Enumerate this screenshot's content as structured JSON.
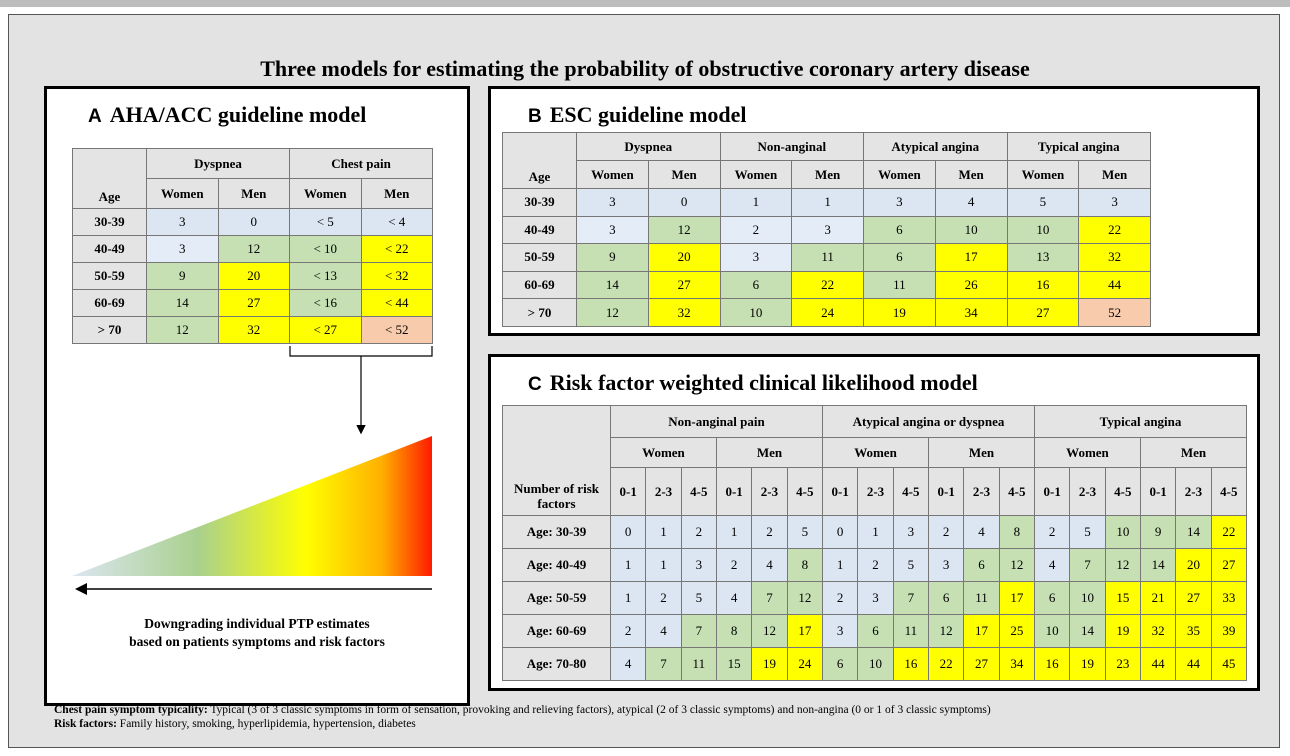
{
  "title": "Three models for estimating the probability of obstructive coronary artery disease",
  "panels": {
    "a": {
      "label": "A",
      "title": "AHA/ACC guideline model",
      "table": {
        "corner": "Age",
        "groups": [
          "Dyspnea",
          "Chest pain"
        ],
        "subgroups": [
          "Women",
          "Men",
          "Women",
          "Men"
        ],
        "rows": [
          {
            "label": "30-39",
            "values": [
              3,
              0,
              "<  5",
              "<  4"
            ],
            "colors": [
              "#dce6f2",
              "#dce6f2",
              "#dce6f2",
              "#dce6f2"
            ]
          },
          {
            "label": "40-49",
            "values": [
              3,
              12,
              "< 10",
              "< 22"
            ],
            "colors": [
              "#e4edf7",
              "#c6e0b4",
              "#c6e0b4",
              "#ffff00"
            ]
          },
          {
            "label": "50-59",
            "values": [
              9,
              20,
              "< 13",
              "< 32"
            ],
            "colors": [
              "#c6e0b4",
              "#ffff00",
              "#c6e0b4",
              "#ffff00"
            ]
          },
          {
            "label": "60-69",
            "values": [
              14,
              27,
              "< 16",
              "< 44"
            ],
            "colors": [
              "#c6e0b4",
              "#ffff00",
              "#c6e0b4",
              "#ffff00"
            ]
          },
          {
            "label": "> 70",
            "values": [
              12,
              32,
              "< 27",
              "< 52"
            ],
            "colors": [
              "#c6e0b4",
              "#ffff00",
              "#ffff00",
              "#f8cbad"
            ]
          }
        ]
      },
      "caption": [
        "Downgrading individual PTP estimates",
        "based on patients symptoms and risk factors"
      ]
    },
    "b": {
      "label": "B",
      "title": "ESC guideline model",
      "table": {
        "corner": "Age",
        "groups": [
          "Dyspnea",
          "Non-anginal",
          "Atypical angina",
          "Typical angina"
        ],
        "subgroups": [
          "Women",
          "Men",
          "Women",
          "Men",
          "Women",
          "Men",
          "Women",
          "Men"
        ],
        "rows": [
          {
            "label": "30-39",
            "values": [
              3,
              0,
              1,
              1,
              3,
              4,
              5,
              3
            ],
            "colors": [
              "#dce6f2",
              "#dce6f2",
              "#dce6f2",
              "#dce6f2",
              "#dce6f2",
              "#dce6f2",
              "#dce6f2",
              "#dce6f2"
            ]
          },
          {
            "label": "40-49",
            "values": [
              3,
              12,
              2,
              3,
              6,
              10,
              10,
              22
            ],
            "colors": [
              "#e4edf7",
              "#c6e0b4",
              "#e4edf7",
              "#e4edf7",
              "#c6e0b4",
              "#c6e0b4",
              "#c6e0b4",
              "#ffff00"
            ]
          },
          {
            "label": "50-59",
            "values": [
              9,
              20,
              3,
              11,
              6,
              17,
              13,
              32
            ],
            "colors": [
              "#c6e0b4",
              "#ffff00",
              "#e4edf7",
              "#c6e0b4",
              "#c6e0b4",
              "#ffff00",
              "#c6e0b4",
              "#ffff00"
            ]
          },
          {
            "label": "60-69",
            "values": [
              14,
              27,
              6,
              22,
              11,
              26,
              16,
              44
            ],
            "colors": [
              "#c6e0b4",
              "#ffff00",
              "#c6e0b4",
              "#ffff00",
              "#c6e0b4",
              "#ffff00",
              "#ffff00",
              "#ffff00"
            ]
          },
          {
            "label": "> 70",
            "values": [
              12,
              32,
              10,
              24,
              19,
              34,
              27,
              52
            ],
            "colors": [
              "#c6e0b4",
              "#ffff00",
              "#c6e0b4",
              "#ffff00",
              "#ffff00",
              "#ffff00",
              "#ffff00",
              "#f8cbad"
            ]
          }
        ]
      }
    },
    "c": {
      "label": "C",
      "title": "Risk factor weighted clinical likelihood model",
      "table": {
        "corner": "Number of risk factors",
        "groups": [
          "Non-anginal pain",
          "Atypical angina or dyspnea",
          "Typical angina"
        ],
        "subgroups": [
          "Women",
          "Men",
          "Women",
          "Men",
          "Women",
          "Men"
        ],
        "subsubgroups": [
          "0-1",
          "2-3",
          "4-5",
          "0-1",
          "2-3",
          "4-5",
          "0-1",
          "2-3",
          "4-5",
          "0-1",
          "2-3",
          "4-5",
          "0-1",
          "2-3",
          "4-5",
          "0-1",
          "2-3",
          "4-5"
        ],
        "rows": [
          {
            "label": "Age: 30-39",
            "values": [
              0,
              1,
              2,
              1,
              2,
              5,
              0,
              1,
              3,
              2,
              4,
              8,
              2,
              5,
              10,
              9,
              14,
              22
            ],
            "colors": [
              "#dce6f2",
              "#dce6f2",
              "#dce6f2",
              "#dce6f2",
              "#dce6f2",
              "#dce6f2",
              "#dce6f2",
              "#dce6f2",
              "#dce6f2",
              "#dce6f2",
              "#dce6f2",
              "#c6e0b4",
              "#dce6f2",
              "#dce6f2",
              "#c6e0b4",
              "#c6e0b4",
              "#c6e0b4",
              "#ffff00"
            ]
          },
          {
            "label": "Age: 40-49",
            "values": [
              1,
              1,
              3,
              2,
              4,
              8,
              1,
              2,
              5,
              3,
              6,
              12,
              4,
              7,
              12,
              14,
              20,
              27
            ],
            "colors": [
              "#dce6f2",
              "#dce6f2",
              "#dce6f2",
              "#dce6f2",
              "#dce6f2",
              "#c6e0b4",
              "#dce6f2",
              "#dce6f2",
              "#dce6f2",
              "#dce6f2",
              "#c6e0b4",
              "#c6e0b4",
              "#dce6f2",
              "#c6e0b4",
              "#c6e0b4",
              "#c6e0b4",
              "#ffff00",
              "#ffff00"
            ]
          },
          {
            "label": "Age: 50-59",
            "values": [
              1,
              2,
              5,
              4,
              7,
              12,
              2,
              3,
              7,
              6,
              11,
              17,
              6,
              10,
              15,
              21,
              27,
              33
            ],
            "colors": [
              "#dce6f2",
              "#dce6f2",
              "#dce6f2",
              "#dce6f2",
              "#c6e0b4",
              "#c6e0b4",
              "#dce6f2",
              "#dce6f2",
              "#c6e0b4",
              "#c6e0b4",
              "#c6e0b4",
              "#ffff00",
              "#c6e0b4",
              "#c6e0b4",
              "#ffff00",
              "#ffff00",
              "#ffff00",
              "#ffff00"
            ]
          },
          {
            "label": "Age: 60-69",
            "values": [
              2,
              4,
              7,
              8,
              12,
              17,
              3,
              6,
              11,
              12,
              17,
              25,
              10,
              14,
              19,
              32,
              35,
              39
            ],
            "colors": [
              "#dce6f2",
              "#dce6f2",
              "#c6e0b4",
              "#c6e0b4",
              "#c6e0b4",
              "#ffff00",
              "#dce6f2",
              "#c6e0b4",
              "#c6e0b4",
              "#c6e0b4",
              "#ffff00",
              "#ffff00",
              "#c6e0b4",
              "#c6e0b4",
              "#ffff00",
              "#ffff00",
              "#ffff00",
              "#ffff00"
            ]
          },
          {
            "label": "Age: 70-80",
            "values": [
              4,
              7,
              11,
              15,
              19,
              24,
              6,
              10,
              16,
              22,
              27,
              34,
              16,
              19,
              23,
              44,
              44,
              45
            ],
            "colors": [
              "#dce6f2",
              "#c6e0b4",
              "#c6e0b4",
              "#c6e0b4",
              "#ffff00",
              "#ffff00",
              "#c6e0b4",
              "#c6e0b4",
              "#ffff00",
              "#ffff00",
              "#ffff00",
              "#ffff00",
              "#ffff00",
              "#ffff00",
              "#ffff00",
              "#ffff00",
              "#ffff00",
              "#ffff00"
            ]
          }
        ]
      }
    }
  },
  "footnotes": [
    {
      "label": "Chest pain symptom typicality:",
      "text": "Typical (3 of 3 classic symptoms in form of sensation, provoking and relieving factors), atypical (2 of 3 classic symptoms) and non-angina (0 or 1 of 3 classic symptoms)"
    },
    {
      "label": "Risk factors:",
      "text": "Family history, smoking, hyperlipidemia, hypertension, diabetes"
    }
  ]
}
